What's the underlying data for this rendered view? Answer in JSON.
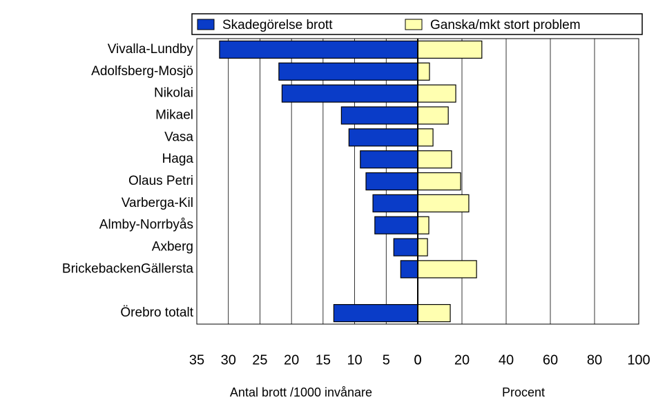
{
  "chart_data": {
    "type": "butterfly",
    "categories": [
      "Vivalla-Lundby",
      "Adolfsberg-Mosjö",
      "Nikolai",
      "Mikael",
      "Vasa",
      "Haga",
      "Olaus Petri",
      "Varberga-Kil",
      "Almby-Norrbyås",
      "Axberg",
      "BrickebackenGällersta",
      null,
      "Örebro totalt"
    ],
    "series": [
      {
        "name": "Skadegörelse brott",
        "color": "#0a3cc8",
        "axis": "x",
        "values": [
          31.4,
          22.0,
          21.5,
          12.1,
          10.9,
          9.1,
          8.2,
          7.1,
          6.8,
          3.8,
          2.7,
          null,
          13.3
        ]
      },
      {
        "name": "Ganska/mkt stort problem",
        "color": "#ffffb0",
        "axis": "x2",
        "values": [
          29,
          5.3,
          17.2,
          13.8,
          6.9,
          15.3,
          19.4,
          23.1,
          5,
          4.4,
          26.6,
          null,
          14.7
        ]
      }
    ],
    "xlim": [
      0,
      35
    ],
    "xticks": [
      35,
      30,
      25,
      20,
      15,
      10,
      5,
      0
    ],
    "x2lim": [
      0,
      100
    ],
    "x2ticks": [
      0,
      20,
      40,
      60,
      80,
      100
    ],
    "xlabel": "Antal brott /1000 invånare",
    "x2label": "Procent",
    "grid": true,
    "legend": "top"
  }
}
